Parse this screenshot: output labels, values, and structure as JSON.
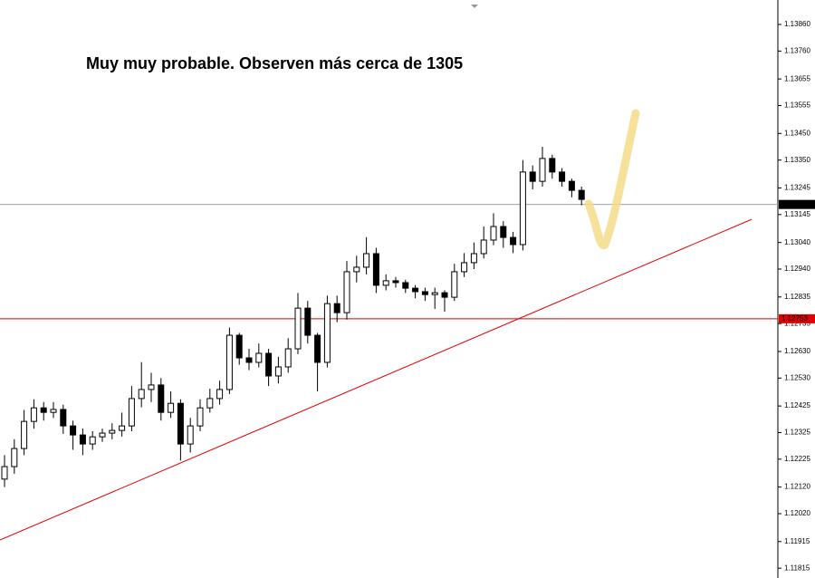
{
  "chart_data": {
    "type": "candlestick",
    "title": "Muy muy probable. Observen más cerca de 1305",
    "ylim": [
      1.11778,
      1.13952
    ],
    "yticks": [
      {
        "value": 1.1386,
        "label": "1.13860"
      },
      {
        "value": 1.1376,
        "label": "1.13760"
      },
      1.13655,
      1.13555,
      {
        "value": 1.1345,
        "label": "1.13450"
      },
      {
        "value": 1.1335,
        "label": "1.13350"
      },
      1.13245,
      1.13145,
      {
        "value": 1.1304,
        "label": "1.13040"
      },
      {
        "value": 1.1294,
        "label": "1.12940"
      },
      1.12835,
      1.12735,
      {
        "value": 1.1263,
        "label": "1.12630"
      },
      {
        "value": 1.1253,
        "label": "1.12530"
      },
      1.12425,
      1.12325,
      1.12225,
      {
        "value": 1.1212,
        "label": "1.12120"
      },
      {
        "value": 1.1202,
        "label": "1.12020"
      },
      1.11915,
      1.11815
    ],
    "open": [
      1.1215,
      1.12197,
      1.12265,
      1.12367,
      1.12418,
      1.12401,
      1.12412,
      1.1235,
      1.12316,
      1.12282,
      1.12309,
      1.12323,
      1.12333,
      1.1235,
      1.12453,
      1.12487,
      1.12504,
      1.12401,
      1.12435,
      1.12282,
      1.1235,
      1.12418,
      1.12453,
      1.12487,
      1.12691,
      1.12606,
      1.12589,
      1.12623,
      1.12538,
      1.12572,
      1.1264,
      1.12793,
      1.12691,
      1.12589,
      1.1281,
      1.12776,
      1.1293,
      1.12947,
      1.12998,
      1.12879,
      1.12896,
      1.12889,
      1.12868,
      1.12855,
      1.12844,
      1.12851,
      1.12834,
      1.1293,
      1.12964,
      1.12998,
      1.13049,
      1.131,
      1.13059,
      1.13032,
      1.13305,
      1.1327,
      1.13356,
      1.13305,
      1.1327,
      1.13236
    ],
    "high": [
      1.1224,
      1.123,
      1.1241,
      1.1245,
      1.1244,
      1.1244,
      1.1243,
      1.1237,
      1.1234,
      1.1233,
      1.1234,
      1.1236,
      1.124,
      1.125,
      1.1259,
      1.1255,
      1.1253,
      1.1248,
      1.1245,
      1.1238,
      1.1245,
      1.1249,
      1.1252,
      1.1272,
      1.127,
      1.1264,
      1.1266,
      1.1264,
      1.1261,
      1.1268,
      1.1285,
      1.1282,
      1.127,
      1.1284,
      1.1284,
      1.1297,
      1.1299,
      1.1306,
      1.1302,
      1.1292,
      1.1291,
      1.129,
      1.1288,
      1.1287,
      1.1287,
      1.1286,
      1.1296,
      1.13,
      1.1304,
      1.131,
      1.1315,
      1.1312,
      1.1308,
      1.1335,
      1.1333,
      1.134,
      1.1337,
      1.1332,
      1.1328,
      1.1325
    ],
    "low": [
      1.1212,
      1.1217,
      1.1224,
      1.1234,
      1.1237,
      1.1238,
      1.1232,
      1.1226,
      1.1224,
      1.1226,
      1.1229,
      1.123,
      1.1231,
      1.1233,
      1.1242,
      1.1244,
      1.1237,
      1.1238,
      1.1222,
      1.1225,
      1.1233,
      1.124,
      1.1243,
      1.1247,
      1.1258,
      1.1256,
      1.1257,
      1.125,
      1.1251,
      1.1255,
      1.1262,
      1.1266,
      1.1248,
      1.1257,
      1.1274,
      1.1275,
      1.1289,
      1.1292,
      1.1285,
      1.1286,
      1.1287,
      1.1285,
      1.1283,
      1.1282,
      1.1279,
      1.1278,
      1.1282,
      1.1291,
      1.1294,
      1.1298,
      1.1303,
      1.1302,
      1.13,
      1.1301,
      1.1324,
      1.1325,
      1.1328,
      1.1325,
      1.1321,
      1.1318
    ],
    "close": [
      1.12197,
      1.12265,
      1.12367,
      1.12418,
      1.12401,
      1.12412,
      1.1235,
      1.12316,
      1.12282,
      1.12309,
      1.12323,
      1.12333,
      1.1235,
      1.12453,
      1.12487,
      1.12504,
      1.12401,
      1.12435,
      1.12282,
      1.1235,
      1.12418,
      1.12453,
      1.12487,
      1.12691,
      1.12606,
      1.12589,
      1.12623,
      1.12538,
      1.12572,
      1.1264,
      1.12793,
      1.12691,
      1.12589,
      1.1281,
      1.12776,
      1.1293,
      1.12947,
      1.12998,
      1.12879,
      1.12896,
      1.12889,
      1.12868,
      1.12855,
      1.12844,
      1.12851,
      1.12834,
      1.1293,
      1.12964,
      1.12998,
      1.13049,
      1.131,
      1.13059,
      1.13032,
      1.13305,
      1.1327,
      1.13356,
      1.13305,
      1.1327,
      1.13236,
      1.13202
    ],
    "horizontal_lines": [
      {
        "value": 1.13183,
        "color": "#a0a0a0"
      },
      {
        "value": 1.12753,
        "color": "#e00000"
      }
    ],
    "trendline": {
      "values": [
        1.11921,
        1.13127
      ],
      "color": "#e00000"
    }
  }
}
